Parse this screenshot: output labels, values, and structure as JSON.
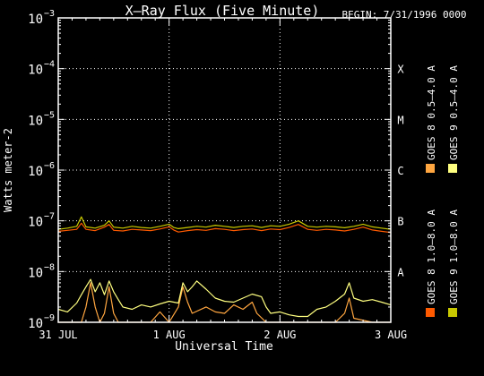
{
  "title": "X–Ray Flux (Five Minute)",
  "begin_label": "BEGIN: 7/31/1996 0000",
  "colors": {
    "background": "#000000",
    "goes8_long": "#ff5a00",
    "goes8_short": "#ffa640",
    "goes9_short": "#ffff80",
    "goes9_long": "#c8c800",
    "axis": "#ffffff"
  },
  "chart_data": {
    "type": "line",
    "title": "X–Ray Flux (Five Minute)",
    "xlabel": "Universal Time",
    "ylabel": "Watts meter-2",
    "y_scale": "log",
    "ylim": [
      1e-09,
      0.001
    ],
    "xlim": [
      0,
      72
    ],
    "x_unit": "hours since 31 JUL 1996 0000 UT",
    "x_ticks": [
      {
        "value": 0,
        "label": "31 JUL"
      },
      {
        "value": 24,
        "label": "1 AUG"
      },
      {
        "value": 48,
        "label": "2 AUG"
      },
      {
        "value": 72,
        "label": "3 AUG"
      }
    ],
    "y_ticks": [
      {
        "exp": -3,
        "label": "10",
        "sup": "−3"
      },
      {
        "exp": -4,
        "label": "10",
        "sup": "−4"
      },
      {
        "exp": -5,
        "label": "10",
        "sup": "−5"
      },
      {
        "exp": -6,
        "label": "10",
        "sup": "−6"
      },
      {
        "exp": -7,
        "label": "10",
        "sup": "−7"
      },
      {
        "exp": -8,
        "label": "10",
        "sup": "−8"
      },
      {
        "exp": -9,
        "label": "10",
        "sup": "−9"
      }
    ],
    "flare_classes": [
      {
        "label": "X",
        "exp": -4
      },
      {
        "label": "M",
        "exp": -5
      },
      {
        "label": "C",
        "exp": -6
      },
      {
        "label": "B",
        "exp": -7
      },
      {
        "label": "A",
        "exp": -8
      }
    ],
    "grid": "dotted horizontal at 1e-4..1e-8, dotted vertical at day boundaries",
    "legend_position": "right, vertical text",
    "series": [
      {
        "name": "GOES 8 1.0–8.0 A",
        "color": "#ff5a00",
        "points": [
          [
            0,
            6.2e-08
          ],
          [
            2,
            6.5e-08
          ],
          [
            4,
            6.8e-08
          ],
          [
            5,
            9e-08
          ],
          [
            6,
            6.8e-08
          ],
          [
            8,
            6.4e-08
          ],
          [
            10,
            7.5e-08
          ],
          [
            11,
            8.5e-08
          ],
          [
            12,
            6.5e-08
          ],
          [
            14,
            6.3e-08
          ],
          [
            16,
            6.8e-08
          ],
          [
            18,
            6.6e-08
          ],
          [
            20,
            6.4e-08
          ],
          [
            22,
            6.9e-08
          ],
          [
            24,
            7.6e-08
          ],
          [
            25,
            6.6e-08
          ],
          [
            26,
            6e-08
          ],
          [
            28,
            6.4e-08
          ],
          [
            30,
            6.7e-08
          ],
          [
            32,
            6.5e-08
          ],
          [
            34,
            7e-08
          ],
          [
            36,
            6.8e-08
          ],
          [
            38,
            6.4e-08
          ],
          [
            40,
            6.7e-08
          ],
          [
            42,
            6.9e-08
          ],
          [
            44,
            6.4e-08
          ],
          [
            46,
            6.9e-08
          ],
          [
            48,
            6.7e-08
          ],
          [
            50,
            7.4e-08
          ],
          [
            52,
            8.5e-08
          ],
          [
            54,
            6.8e-08
          ],
          [
            56,
            6.5e-08
          ],
          [
            58,
            6.8e-08
          ],
          [
            60,
            6.6e-08
          ],
          [
            62,
            6.3e-08
          ],
          [
            64,
            6.8e-08
          ],
          [
            66,
            7.5e-08
          ],
          [
            68,
            6.6e-08
          ],
          [
            70,
            6.2e-08
          ],
          [
            72,
            5.9e-08
          ]
        ]
      },
      {
        "name": "GOES 8 0.5–4.0 A",
        "color": "#ffa640",
        "points": [
          [
            0,
            1e-09
          ],
          [
            5,
            1e-09
          ],
          [
            6,
            2e-09
          ],
          [
            7,
            6e-09
          ],
          [
            8,
            2e-09
          ],
          [
            9,
            1e-09
          ],
          [
            10,
            1.5e-09
          ],
          [
            11,
            5e-09
          ],
          [
            12,
            1.5e-09
          ],
          [
            13,
            1e-09
          ],
          [
            20,
            1e-09
          ],
          [
            22,
            1.6e-09
          ],
          [
            24,
            1e-09
          ],
          [
            26,
            2e-09
          ],
          [
            27,
            5e-09
          ],
          [
            28,
            2.5e-09
          ],
          [
            29,
            1.5e-09
          ],
          [
            32,
            2e-09
          ],
          [
            34,
            1.6e-09
          ],
          [
            36,
            1.5e-09
          ],
          [
            38,
            2.2e-09
          ],
          [
            40,
            1.8e-09
          ],
          [
            42,
            2.5e-09
          ],
          [
            43,
            1.5e-09
          ],
          [
            45,
            1e-09
          ],
          [
            50,
            1e-09
          ],
          [
            56,
            1e-09
          ],
          [
            60,
            1e-09
          ],
          [
            62,
            1.5e-09
          ],
          [
            63,
            3e-09
          ],
          [
            64,
            1.2e-09
          ],
          [
            68,
            1e-09
          ],
          [
            72,
            1e-09
          ]
        ]
      },
      {
        "name": "GOES 9 1.0–8.0 A",
        "color": "#c8c800",
        "points": [
          [
            0,
            6.8e-08
          ],
          [
            2,
            7.2e-08
          ],
          [
            4,
            7.8e-08
          ],
          [
            5,
            1.2e-07
          ],
          [
            6,
            7.6e-08
          ],
          [
            8,
            7.2e-08
          ],
          [
            10,
            8.2e-08
          ],
          [
            11,
            1e-07
          ],
          [
            12,
            7.5e-08
          ],
          [
            14,
            7.2e-08
          ],
          [
            16,
            7.8e-08
          ],
          [
            18,
            7.4e-08
          ],
          [
            20,
            7.2e-08
          ],
          [
            22,
            7.8e-08
          ],
          [
            24,
            8.6e-08
          ],
          [
            25,
            7.4e-08
          ],
          [
            26,
            7e-08
          ],
          [
            28,
            7.4e-08
          ],
          [
            30,
            7.8e-08
          ],
          [
            32,
            7.5e-08
          ],
          [
            34,
            8.2e-08
          ],
          [
            36,
            7.8e-08
          ],
          [
            38,
            7.4e-08
          ],
          [
            40,
            7.8e-08
          ],
          [
            42,
            8e-08
          ],
          [
            44,
            7.4e-08
          ],
          [
            46,
            8e-08
          ],
          [
            48,
            7.8e-08
          ],
          [
            50,
            8.6e-08
          ],
          [
            52,
            1e-07
          ],
          [
            54,
            7.8e-08
          ],
          [
            56,
            7.5e-08
          ],
          [
            58,
            7.8e-08
          ],
          [
            60,
            7.6e-08
          ],
          [
            62,
            7.3e-08
          ],
          [
            64,
            7.8e-08
          ],
          [
            66,
            8.6e-08
          ],
          [
            68,
            7.6e-08
          ],
          [
            70,
            7.2e-08
          ],
          [
            72,
            6.8e-08
          ]
        ]
      },
      {
        "name": "GOES 9 0.5–4.0 A",
        "color": "#ffff80",
        "points": [
          [
            0,
            1.8e-09
          ],
          [
            2,
            1.6e-09
          ],
          [
            4,
            2.4e-09
          ],
          [
            5,
            3.5e-09
          ],
          [
            6,
            5e-09
          ],
          [
            7,
            7e-09
          ],
          [
            8,
            4e-09
          ],
          [
            9,
            6e-09
          ],
          [
            10,
            3.5e-09
          ],
          [
            11,
            6.5e-09
          ],
          [
            12,
            4e-09
          ],
          [
            13,
            2.8e-09
          ],
          [
            14,
            2e-09
          ],
          [
            16,
            1.8e-09
          ],
          [
            18,
            2.2e-09
          ],
          [
            20,
            2e-09
          ],
          [
            22,
            2.3e-09
          ],
          [
            24,
            2.6e-09
          ],
          [
            26,
            2.4e-09
          ],
          [
            27,
            6e-09
          ],
          [
            28,
            4e-09
          ],
          [
            29,
            5e-09
          ],
          [
            30,
            6.5e-09
          ],
          [
            32,
            4.5e-09
          ],
          [
            34,
            3e-09
          ],
          [
            36,
            2.6e-09
          ],
          [
            38,
            2.5e-09
          ],
          [
            40,
            3e-09
          ],
          [
            42,
            3.6e-09
          ],
          [
            44,
            3.2e-09
          ],
          [
            45,
            2e-09
          ],
          [
            46,
            1.5e-09
          ],
          [
            48,
            1.6e-09
          ],
          [
            50,
            1.4e-09
          ],
          [
            52,
            1.3e-09
          ],
          [
            54,
            1.3e-09
          ],
          [
            56,
            1.8e-09
          ],
          [
            58,
            2e-09
          ],
          [
            60,
            2.6e-09
          ],
          [
            62,
            3.6e-09
          ],
          [
            63,
            6e-09
          ],
          [
            64,
            3e-09
          ],
          [
            66,
            2.6e-09
          ],
          [
            68,
            2.8e-09
          ],
          [
            70,
            2.5e-09
          ],
          [
            72,
            2.2e-09
          ]
        ]
      }
    ]
  }
}
